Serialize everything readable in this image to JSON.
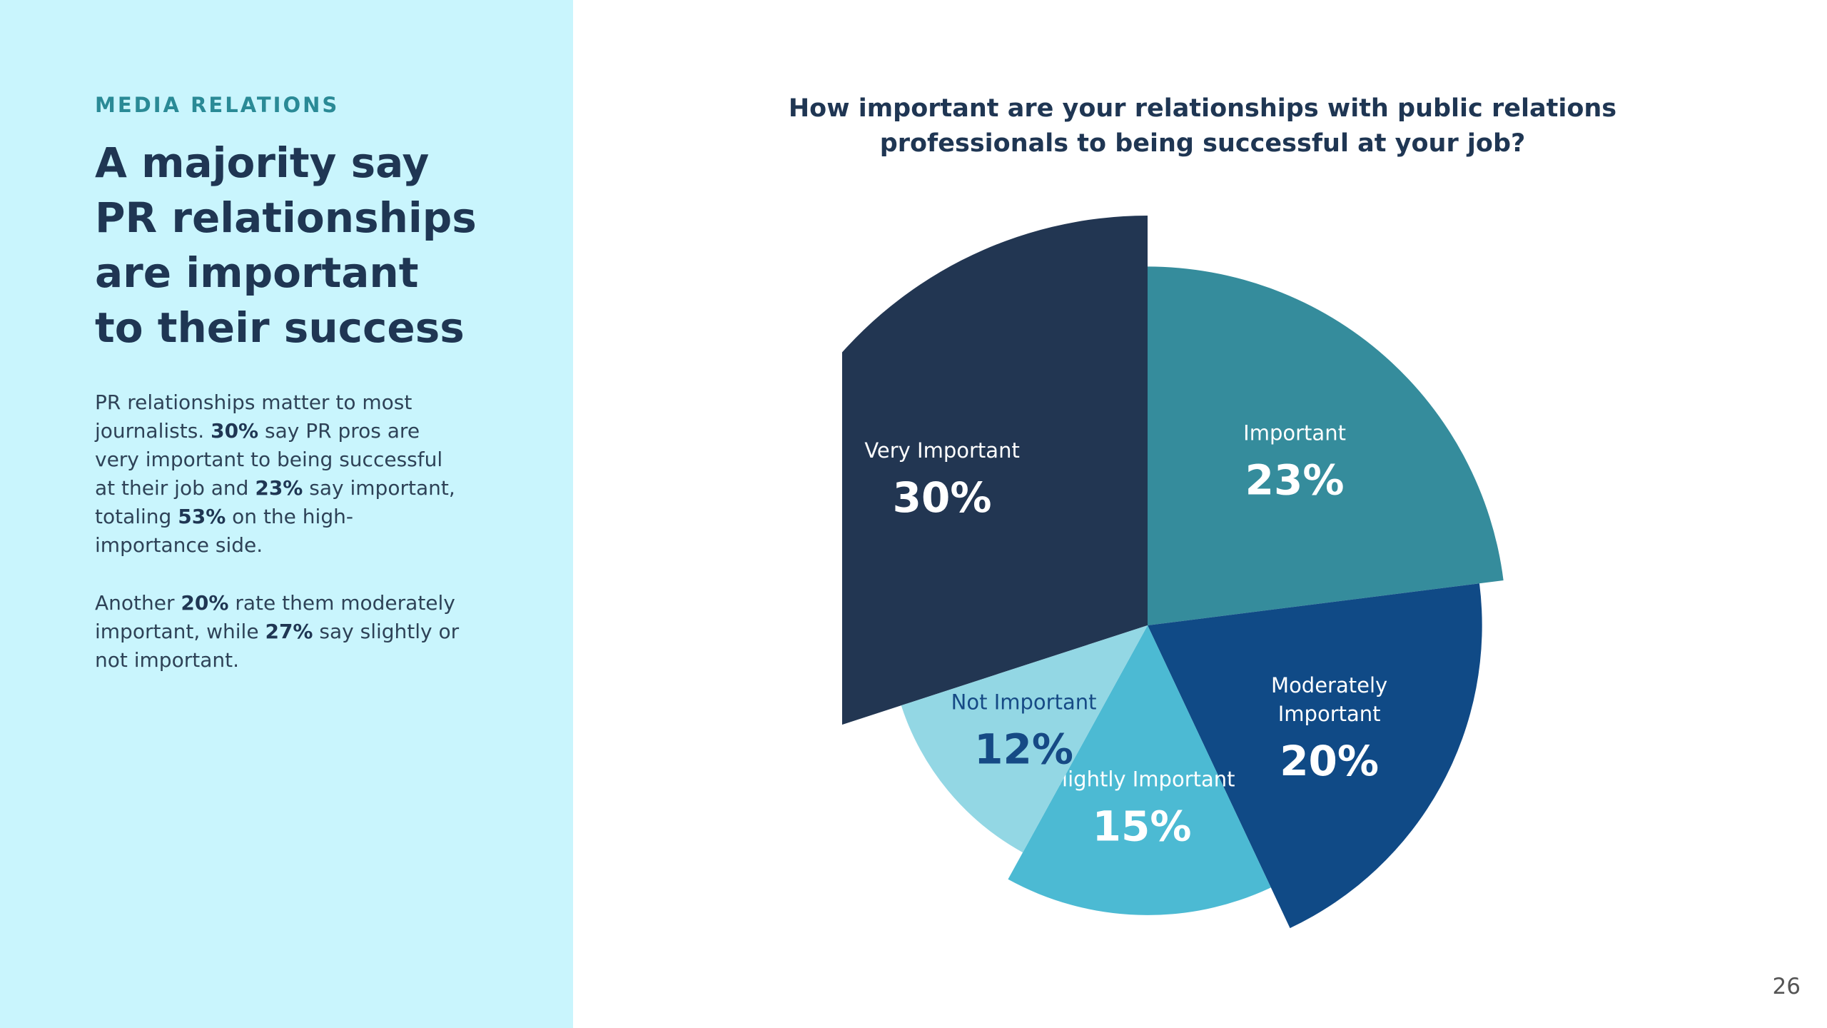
{
  "sidebar": {
    "eyebrow": "MEDIA RELATIONS",
    "headline": [
      "A majority say",
      "PR relationships",
      "are important",
      "to their success"
    ],
    "para1": {
      "t1": "PR relationships matter to most journalists. ",
      "b1": "30%",
      "t2": " say PR pros are very important to being successful at their job and ",
      "b2": "23%",
      "t3": " say important, totaling ",
      "b3": "53%",
      "t4": " on the high-importance side."
    },
    "para2": {
      "t1": "Another ",
      "b1": "20%",
      "t2": " rate them moderately important, while ",
      "b2": "27%",
      "t3": " say slightly or not important."
    }
  },
  "page_number": "26",
  "chart_data": {
    "type": "pie",
    "title": "How important are your relationships with public relations professionals to being successful at your job?",
    "slices": [
      {
        "label": "Very Important",
        "value": 30,
        "display": "30%",
        "color": "#223652",
        "label_color": "#ffffff"
      },
      {
        "label": "Important",
        "value": 23,
        "display": "23%",
        "color": "#358c9c",
        "label_color": "#ffffff"
      },
      {
        "label": "Moderately Important",
        "value": 20,
        "display": "20%",
        "color": "#104a86",
        "label_color": "#ffffff"
      },
      {
        "label": "Slightly Important",
        "value": 15,
        "display": "15%",
        "color": "#4cbad3",
        "label_color": "#ffffff"
      },
      {
        "label": "Not Important",
        "value": 12,
        "display": "12%",
        "color": "#93d7e4",
        "label_color": "#164a85"
      }
    ]
  }
}
